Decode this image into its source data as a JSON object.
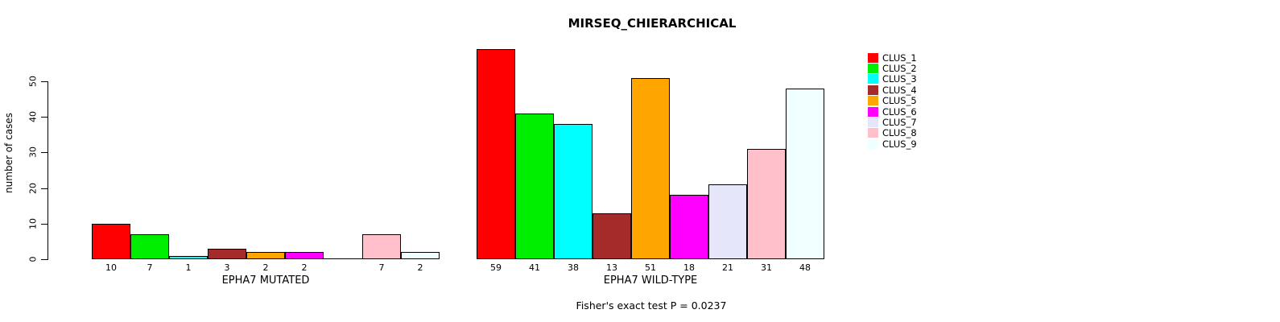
{
  "title": "MIRSEQ_CHIERARCHICAL",
  "annotation": "Fisher's exact test P = 0.0237",
  "chart_data": {
    "type": "bar",
    "title": "MIRSEQ_CHIERARCHICAL",
    "ylabel": "number of cases",
    "annotation": "Fisher's exact test P = 0.0237",
    "categories": [
      "CLUS_1",
      "CLUS_2",
      "CLUS_3",
      "CLUS_4",
      "CLUS_5",
      "CLUS_6",
      "CLUS_7",
      "CLUS_8",
      "CLUS_9"
    ],
    "colors": [
      "#ff0000",
      "#00ee00",
      "#00ffff",
      "#a52a2a",
      "#ffa500",
      "#ff00ff",
      "#e6e6fa",
      "#ffc0cb",
      "#f0ffff"
    ],
    "series": [
      {
        "name": "EPHA7 MUTATED",
        "values": [
          10,
          7,
          1,
          3,
          2,
          2,
          0,
          7,
          2
        ]
      },
      {
        "name": "EPHA7 WILD-TYPE",
        "values": [
          59,
          41,
          38,
          13,
          51,
          18,
          21,
          31,
          48
        ]
      }
    ],
    "yticks": [
      0,
      10,
      20,
      30,
      40,
      50
    ],
    "ylim": [
      0,
      50
    ],
    "grid": false,
    "legend_position": "right",
    "bar_border_color": "#000000",
    "text_color": "#000000"
  }
}
